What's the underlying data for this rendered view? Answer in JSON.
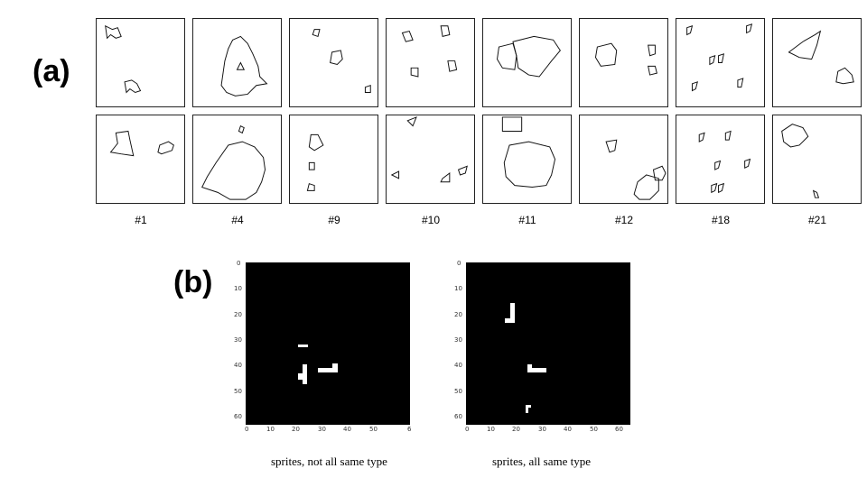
{
  "panel_a": {
    "label": "(a)",
    "columns": [
      "#1",
      "#4",
      "#9",
      "#10",
      "#11",
      "#12",
      "#18",
      "#21"
    ]
  },
  "panel_b": {
    "label": "(b)",
    "plots": [
      {
        "caption": "sprites, not all same type",
        "y_ticks": [
          "0",
          "10",
          "20",
          "30",
          "40",
          "50",
          "60"
        ],
        "x_ticks": [
          "0",
          "10",
          "20",
          "30",
          "40",
          "50",
          "6"
        ]
      },
      {
        "caption": "sprites, all same type",
        "y_ticks": [
          "0",
          "10",
          "20",
          "30",
          "40",
          "50",
          "60"
        ],
        "x_ticks": [
          "0",
          "10",
          "20",
          "30",
          "40",
          "50",
          "60"
        ]
      }
    ]
  }
}
